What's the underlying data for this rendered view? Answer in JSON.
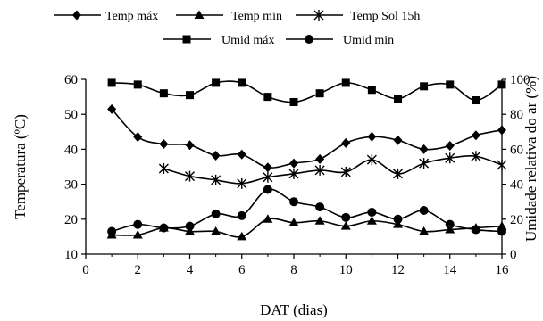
{
  "chart_data": {
    "type": "line",
    "xlabel": "DAT (dias)",
    "ylabel_left": "Temperatura (ºC)",
    "ylabel_right": "Umidade relativa do ar (%)",
    "xlim": [
      0,
      16
    ],
    "ylim_left": [
      10,
      60
    ],
    "ylim_right": [
      0,
      100
    ],
    "x_ticks": [
      "0",
      "2",
      "4",
      "6",
      "8",
      "10",
      "12",
      "14",
      "16"
    ],
    "y_left_ticks": [
      "10",
      "20",
      "30",
      "40",
      "50",
      "60"
    ],
    "y_right_ticks": [
      "0",
      "20",
      "40",
      "60",
      "80",
      "100"
    ],
    "grid": false,
    "legend_placement": "top",
    "series": [
      {
        "name": "Temp máx",
        "axis": "left",
        "marker": "diamond",
        "color": "#000000",
        "x": [
          1,
          2,
          3,
          4,
          5,
          6,
          7,
          8,
          9,
          10,
          11,
          12,
          13,
          14,
          15,
          16
        ],
        "values": [
          51.5,
          43.5,
          41.5,
          41.2,
          38.2,
          38.5,
          34.8,
          36.0,
          37.2,
          41.8,
          43.6,
          42.6,
          40.0,
          41.0,
          44.0,
          45.5
        ]
      },
      {
        "name": "Temp min",
        "axis": "left",
        "marker": "triangle",
        "color": "#000000",
        "x": [
          1,
          2,
          3,
          4,
          5,
          6,
          7,
          8,
          9,
          10,
          11,
          12,
          13,
          14,
          15,
          16
        ],
        "values": [
          15.5,
          15.5,
          17.5,
          16.5,
          16.5,
          15.0,
          20.0,
          19.0,
          19.5,
          18.0,
          19.5,
          18.5,
          16.5,
          17.0,
          17.5,
          18.0
        ]
      },
      {
        "name": "Temp Sol 15h",
        "axis": "left",
        "marker": "asterisk",
        "color": "#000000",
        "x": [
          3,
          4,
          5,
          6,
          7,
          8,
          9,
          10,
          11,
          12,
          13,
          14,
          15,
          16
        ],
        "values": [
          34.5,
          32.3,
          31.2,
          30.2,
          32.0,
          33.0,
          34.0,
          33.5,
          37.0,
          33.0,
          36.0,
          37.5,
          38.0,
          35.5
        ]
      },
      {
        "name": "Umid máx",
        "axis": "right",
        "marker": "square",
        "color": "#000000",
        "x": [
          1,
          2,
          3,
          4,
          5,
          6,
          7,
          8,
          9,
          10,
          11,
          12,
          13,
          14,
          15,
          16
        ],
        "values": [
          98,
          97,
          92,
          91,
          98,
          98,
          90,
          87,
          92,
          98,
          94,
          89,
          96,
          97,
          88,
          97
        ]
      },
      {
        "name": "Umid min",
        "axis": "right",
        "marker": "circle",
        "color": "#000000",
        "x": [
          1,
          2,
          3,
          4,
          5,
          6,
          7,
          8,
          9,
          10,
          11,
          12,
          13,
          14,
          15,
          16
        ],
        "values": [
          13,
          17,
          15,
          16,
          23,
          22,
          37,
          30,
          27,
          21,
          24,
          20,
          25,
          17,
          14,
          13
        ]
      }
    ]
  }
}
